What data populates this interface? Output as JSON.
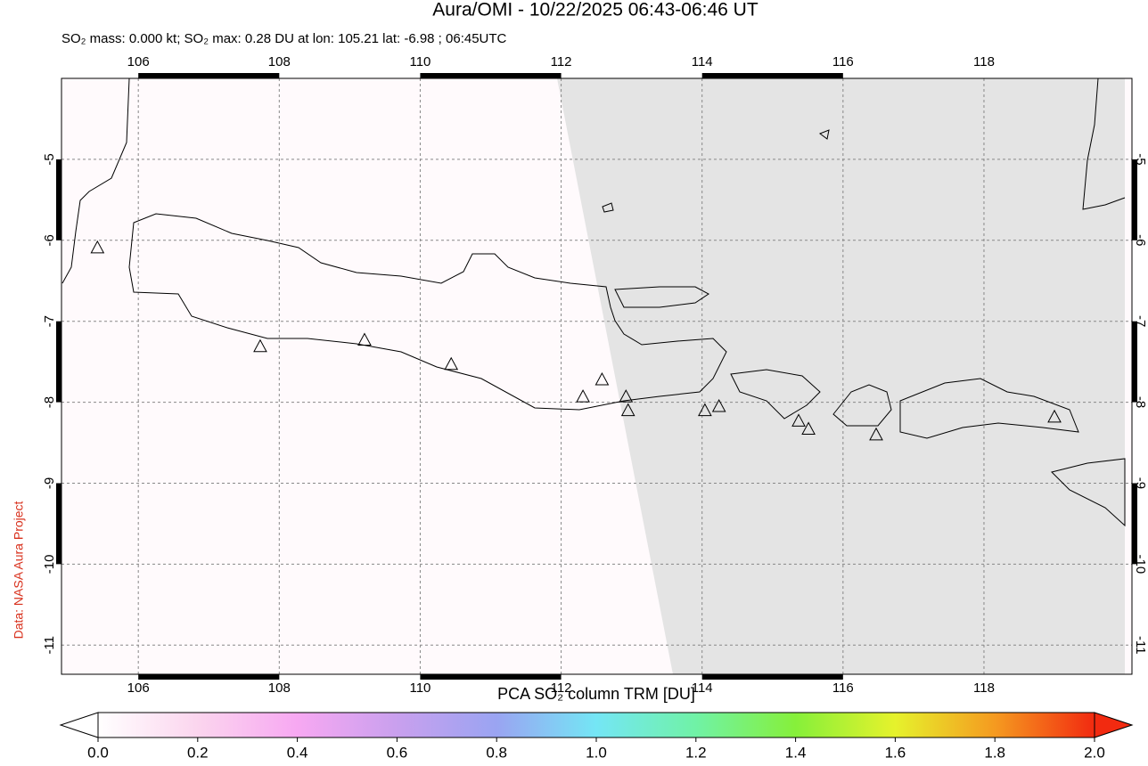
{
  "chart_data": {
    "type": "map",
    "title": "Aura/OMI - 10/22/2025 06:43-06:46 UT",
    "subtitle": "SO₂ mass: 0.000 kt; SO₂ max: 0.28 DU at lon: 105.21 lat: -6.98 ; 06:45UTC",
    "credit": "Data: NASA Aura Project",
    "xlim": [
      104.91,
      120.1
    ],
    "xticks": [
      106,
      108,
      110,
      112,
      114,
      116,
      118
    ],
    "ylim": [
      -11.36,
      -4.0
    ],
    "yticks": [
      -5,
      -6,
      -7,
      -8,
      -9,
      -10,
      -11
    ],
    "grid": true,
    "volcanoes": {
      "lon": [
        105.42,
        107.73,
        109.21,
        110.44,
        112.31,
        112.58,
        112.92,
        112.95,
        114.04,
        114.24,
        115.37,
        115.51,
        116.47,
        119.0
      ],
      "lat": [
        -6.1,
        -7.32,
        -7.24,
        -7.54,
        -7.94,
        -7.73,
        -7.94,
        -8.11,
        -8.11,
        -8.06,
        -8.24,
        -8.34,
        -8.41,
        -8.19
      ],
      "color": "#000000"
    },
    "colorbar": {
      "label": "PCA SO₂ column TRM [DU]",
      "lim": [
        0.0,
        2.0
      ],
      "ticks": [
        {
          "value": 0.0,
          "label": "0.0"
        },
        {
          "value": 0.2,
          "label": "0.2"
        },
        {
          "value": 0.4,
          "label": "0.4"
        },
        {
          "value": 0.6,
          "label": "0.6"
        },
        {
          "value": 0.8,
          "label": "0.8"
        },
        {
          "value": 1.0,
          "label": "1.0"
        },
        {
          "value": 1.2,
          "label": "1.2"
        },
        {
          "value": 1.4,
          "label": "1.4"
        },
        {
          "value": 1.6,
          "label": "1.6"
        },
        {
          "value": 1.8,
          "label": "1.8"
        },
        {
          "value": 2.0,
          "label": "2.0"
        }
      ]
    }
  }
}
